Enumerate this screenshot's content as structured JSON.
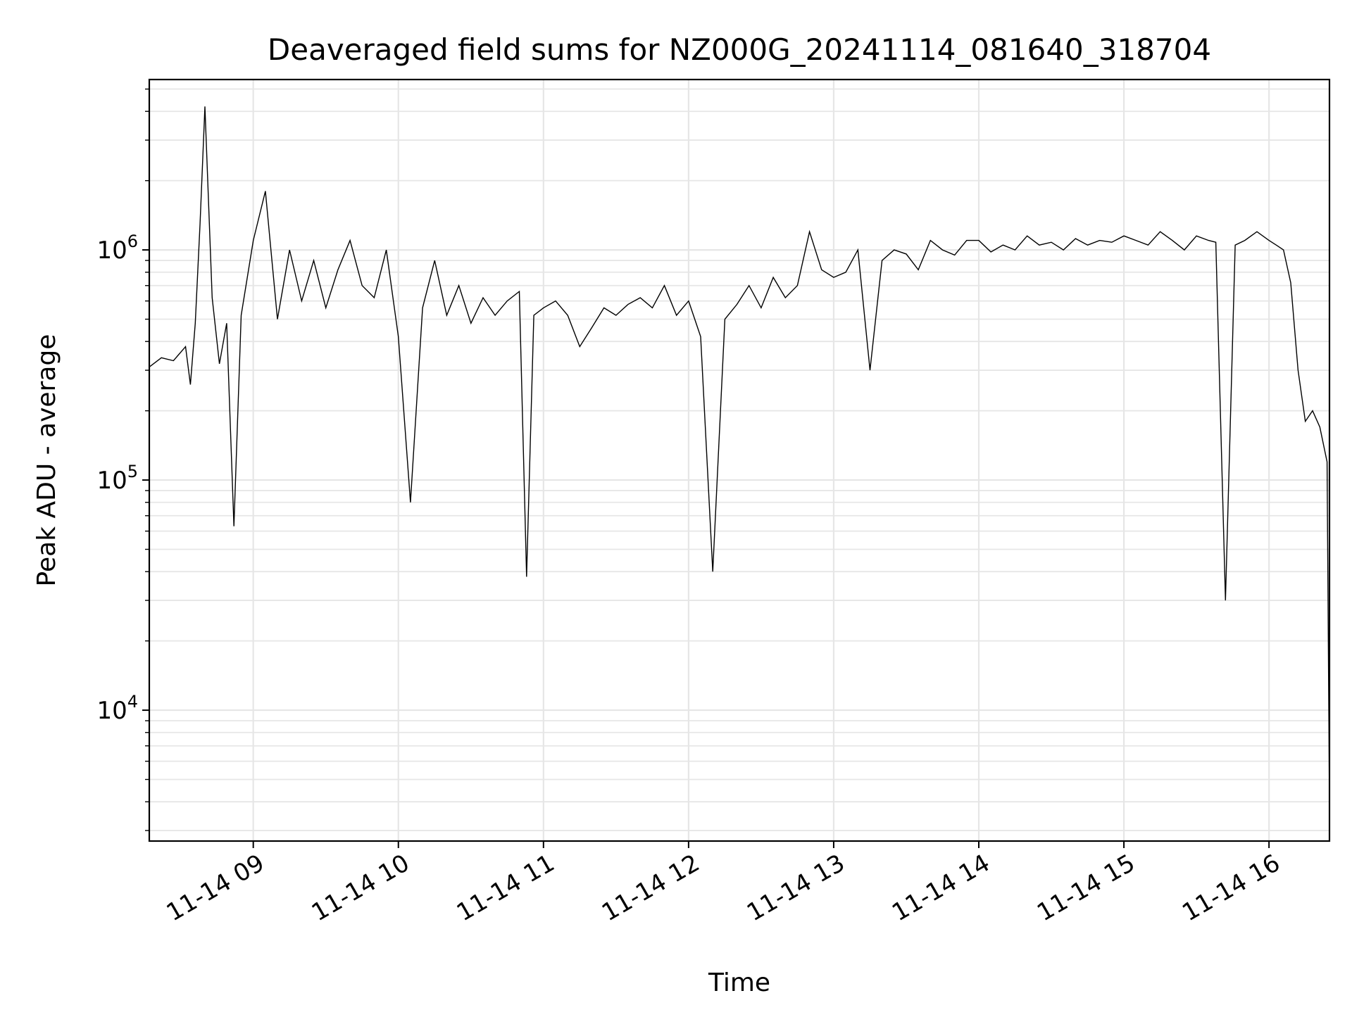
{
  "chart_data": {
    "type": "line",
    "title": "Deaveraged field sums for NZ000G_20241114_081640_318704",
    "xlabel": "Time",
    "ylabel": "Peak ADU - average",
    "y_scale": "log",
    "ylim": [
      2700,
      5500000
    ],
    "xlim": [
      "2024-11-14 08:17",
      "2024-11-14 16:25"
    ],
    "x_ticks": [
      {
        "value": "2024-11-14 09:00",
        "label": "11-14 09"
      },
      {
        "value": "2024-11-14 10:00",
        "label": "11-14 10"
      },
      {
        "value": "2024-11-14 11:00",
        "label": "11-14 11"
      },
      {
        "value": "2024-11-14 12:00",
        "label": "11-14 12"
      },
      {
        "value": "2024-11-14 13:00",
        "label": "11-14 13"
      },
      {
        "value": "2024-11-14 14:00",
        "label": "11-14 14"
      },
      {
        "value": "2024-11-14 15:00",
        "label": "11-14 15"
      },
      {
        "value": "2024-11-14 16:00",
        "label": "11-14 16"
      }
    ],
    "y_ticks": [
      {
        "value": 10000,
        "base": "10",
        "exp": "4"
      },
      {
        "value": 100000,
        "base": "10",
        "exp": "5"
      },
      {
        "value": 1000000,
        "base": "10",
        "exp": "6"
      }
    ],
    "grid": true,
    "minor_grid_y": true,
    "line_color": "#000000",
    "grid_color": "#e6e6e6",
    "series": [
      {
        "x": [
          "2024-11-14 08:17",
          "2024-11-14 08:22",
          "2024-11-14 08:27",
          "2024-11-14 08:32",
          "2024-11-14 08:34",
          "2024-11-14 08:36",
          "2024-11-14 08:38",
          "2024-11-14 08:40",
          "2024-11-14 08:43",
          "2024-11-14 08:46",
          "2024-11-14 08:49",
          "2024-11-14 08:52",
          "2024-11-14 08:55",
          "2024-11-14 09:00",
          "2024-11-14 09:05",
          "2024-11-14 09:10",
          "2024-11-14 09:15",
          "2024-11-14 09:20",
          "2024-11-14 09:25",
          "2024-11-14 09:30",
          "2024-11-14 09:35",
          "2024-11-14 09:40",
          "2024-11-14 09:45",
          "2024-11-14 09:50",
          "2024-11-14 09:55",
          "2024-11-14 10:00",
          "2024-11-14 10:05",
          "2024-11-14 10:10",
          "2024-11-14 10:15",
          "2024-11-14 10:20",
          "2024-11-14 10:25",
          "2024-11-14 10:30",
          "2024-11-14 10:35",
          "2024-11-14 10:40",
          "2024-11-14 10:45",
          "2024-11-14 10:50",
          "2024-11-14 10:53",
          "2024-11-14 10:56",
          "2024-11-14 11:00",
          "2024-11-14 11:05",
          "2024-11-14 11:10",
          "2024-11-14 11:15",
          "2024-11-14 11:20",
          "2024-11-14 11:25",
          "2024-11-14 11:30",
          "2024-11-14 11:35",
          "2024-11-14 11:40",
          "2024-11-14 11:45",
          "2024-11-14 11:50",
          "2024-11-14 11:55",
          "2024-11-14 12:00",
          "2024-11-14 12:05",
          "2024-11-14 12:10",
          "2024-11-14 12:15",
          "2024-11-14 12:20",
          "2024-11-14 12:25",
          "2024-11-14 12:30",
          "2024-11-14 12:35",
          "2024-11-14 12:40",
          "2024-11-14 12:45",
          "2024-11-14 12:50",
          "2024-11-14 12:55",
          "2024-11-14 13:00",
          "2024-11-14 13:05",
          "2024-11-14 13:10",
          "2024-11-14 13:15",
          "2024-11-14 13:20",
          "2024-11-14 13:25",
          "2024-11-14 13:30",
          "2024-11-14 13:35",
          "2024-11-14 13:40",
          "2024-11-14 13:45",
          "2024-11-14 13:50",
          "2024-11-14 13:55",
          "2024-11-14 14:00",
          "2024-11-14 14:05",
          "2024-11-14 14:10",
          "2024-11-14 14:15",
          "2024-11-14 14:20",
          "2024-11-14 14:25",
          "2024-11-14 14:30",
          "2024-11-14 14:35",
          "2024-11-14 14:40",
          "2024-11-14 14:45",
          "2024-11-14 14:50",
          "2024-11-14 14:55",
          "2024-11-14 15:00",
          "2024-11-14 15:05",
          "2024-11-14 15:10",
          "2024-11-14 15:15",
          "2024-11-14 15:20",
          "2024-11-14 15:25",
          "2024-11-14 15:30",
          "2024-11-14 15:35",
          "2024-11-14 15:38",
          "2024-11-14 15:42",
          "2024-11-14 15:46",
          "2024-11-14 15:50",
          "2024-11-14 15:55",
          "2024-11-14 16:00",
          "2024-11-14 16:03",
          "2024-11-14 16:06",
          "2024-11-14 16:09",
          "2024-11-14 16:12",
          "2024-11-14 16:15",
          "2024-11-14 16:18",
          "2024-11-14 16:21",
          "2024-11-14 16:24",
          "2024-11-14 16:25"
        ],
        "y": [
          310000,
          340000,
          330000,
          380000,
          260000,
          480000,
          1300000,
          4200000,
          620000,
          320000,
          480000,
          63000,
          520000,
          1100000,
          1800000,
          500000,
          1000000,
          600000,
          900000,
          560000,
          820000,
          1100000,
          700000,
          620000,
          1000000,
          420000,
          80000,
          560000,
          900000,
          520000,
          700000,
          480000,
          620000,
          520000,
          600000,
          660000,
          38000,
          520000,
          560000,
          600000,
          520000,
          380000,
          460000,
          560000,
          520000,
          580000,
          620000,
          560000,
          700000,
          520000,
          600000,
          420000,
          40000,
          500000,
          580000,
          700000,
          560000,
          760000,
          620000,
          700000,
          1200000,
          820000,
          760000,
          800000,
          1000000,
          300000,
          900000,
          1000000,
          960000,
          820000,
          1100000,
          1000000,
          950000,
          1100000,
          1100000,
          980000,
          1050000,
          1000000,
          1150000,
          1050000,
          1080000,
          1000000,
          1120000,
          1050000,
          1100000,
          1080000,
          1150000,
          1100000,
          1050000,
          1200000,
          1100000,
          1000000,
          1150000,
          1100000,
          1080000,
          30000,
          1050000,
          1100000,
          1200000,
          1100000,
          1050000,
          1000000,
          720000,
          300000,
          180000,
          200000,
          170000,
          120000,
          3800
        ]
      }
    ]
  }
}
